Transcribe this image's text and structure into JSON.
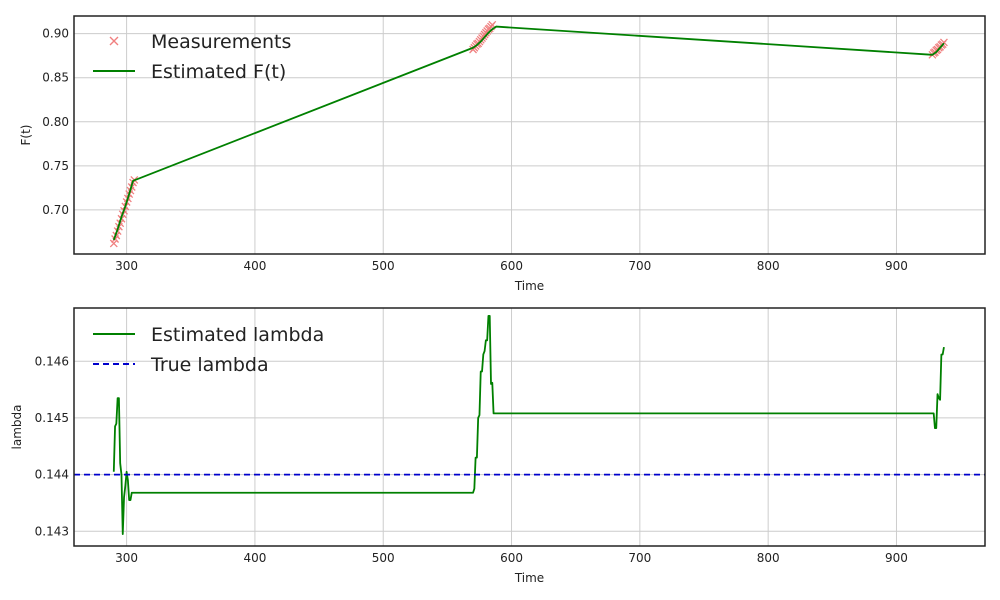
{
  "chart_data": [
    {
      "type": "line",
      "xlabel": "Time",
      "ylabel": "F(t)",
      "xlim": [
        259,
        969
      ],
      "ylim": [
        0.65,
        0.92
      ],
      "xticks": [
        300,
        400,
        500,
        600,
        700,
        800,
        900
      ],
      "xtick_labels": [
        "300",
        "400",
        "500",
        "600",
        "700",
        "800",
        "900"
      ],
      "yticks": [
        0.7,
        0.75,
        0.8,
        0.85,
        0.9
      ],
      "ytick_labels": [
        "0.70",
        "0.75",
        "0.80",
        "0.85",
        "0.90"
      ],
      "grid": true,
      "legend_position": "upper-left",
      "legend": [
        "Measurements",
        "Estimated F(t)"
      ],
      "series": [
        {
          "name": "Measurements",
          "style": "x-markers",
          "color": "#f08080",
          "x": [
            290,
            291,
            292,
            293,
            294,
            295,
            296,
            297,
            298,
            299,
            300,
            301,
            302,
            303,
            304,
            305,
            306,
            570,
            571,
            572,
            573,
            574,
            575,
            576,
            577,
            578,
            579,
            580,
            581,
            582,
            583,
            584,
            585,
            928,
            929,
            930,
            931,
            932,
            933,
            934,
            935,
            936,
            937
          ],
          "y": [
            0.662,
            0.667,
            0.671,
            0.676,
            0.681,
            0.685,
            0.69,
            0.695,
            0.699,
            0.704,
            0.709,
            0.713,
            0.718,
            0.722,
            0.726,
            0.731,
            0.734,
            0.882,
            0.884,
            0.886,
            0.888,
            0.889,
            0.891,
            0.893,
            0.895,
            0.897,
            0.899,
            0.901,
            0.903,
            0.905,
            0.906,
            0.908,
            0.91,
            0.876,
            0.878,
            0.879,
            0.881,
            0.882,
            0.884,
            0.885,
            0.887,
            0.888,
            0.89
          ]
        },
        {
          "name": "Estimated F(t)",
          "style": "solid",
          "color": "#008000",
          "x": [
            290,
            293,
            296,
            299,
            302,
            305,
            570,
            573,
            576,
            579,
            582,
            585,
            588,
            928,
            931,
            934,
            937
          ],
          "y": [
            0.666,
            0.678,
            0.692,
            0.704,
            0.718,
            0.733,
            0.884,
            0.887,
            0.891,
            0.896,
            0.901,
            0.905,
            0.908,
            0.876,
            0.879,
            0.884,
            0.889
          ]
        }
      ]
    },
    {
      "type": "line",
      "xlabel": "Time",
      "ylabel": "lambda",
      "xlim": [
        259,
        969
      ],
      "ylim": [
        0.14274,
        0.14694
      ],
      "xticks": [
        300,
        400,
        500,
        600,
        700,
        800,
        900
      ],
      "xtick_labels": [
        "300",
        "400",
        "500",
        "600",
        "700",
        "800",
        "900"
      ],
      "yticks": [
        0.143,
        0.144,
        0.145,
        0.146
      ],
      "ytick_labels": [
        "0.143",
        "0.144",
        "0.145",
        "0.146"
      ],
      "grid": true,
      "legend_position": "upper-left",
      "legend": [
        "Estimated lambda",
        "True lambda"
      ],
      "series": [
        {
          "name": "Estimated lambda",
          "style": "solid",
          "color": "#008000",
          "x": [
            290,
            291,
            292,
            293,
            294,
            295,
            296,
            297,
            298,
            299,
            300,
            301,
            302,
            303,
            304,
            305,
            306,
            570,
            571,
            572,
            573,
            574,
            575,
            576,
            577,
            578,
            579,
            580,
            581,
            582,
            583,
            584,
            585,
            586,
            928,
            929,
            930,
            931,
            932,
            933,
            934,
            935,
            936,
            937
          ],
          "y": [
            0.14405,
            0.14485,
            0.1449,
            0.14535,
            0.14535,
            0.1442,
            0.144,
            0.14295,
            0.1436,
            0.1438,
            0.14405,
            0.1439,
            0.14355,
            0.14355,
            0.14368,
            0.14368,
            0.14368,
            0.14368,
            0.14375,
            0.1443,
            0.1443,
            0.145,
            0.14505,
            0.14582,
            0.14582,
            0.14612,
            0.14618,
            0.14637,
            0.14637,
            0.1468,
            0.1468,
            0.1456,
            0.14562,
            0.14508,
            0.14508,
            0.14508,
            0.14482,
            0.14482,
            0.14542,
            0.14535,
            0.14532,
            0.14612,
            0.14612,
            0.14625
          ]
        },
        {
          "name": "True lambda",
          "style": "dashed",
          "color": "#0000cc",
          "x": [
            259,
            969
          ],
          "y": [
            0.144,
            0.144
          ]
        }
      ]
    }
  ]
}
